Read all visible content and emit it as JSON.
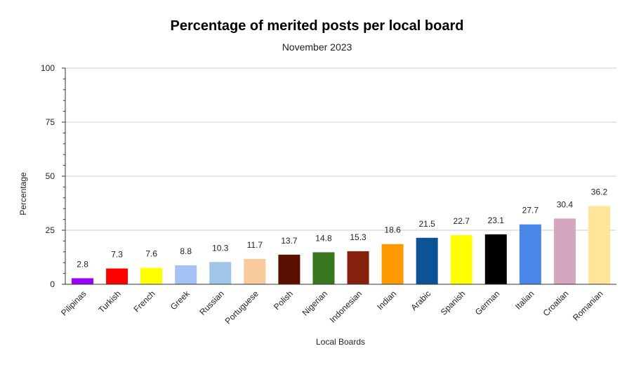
{
  "chart_data": {
    "type": "bar",
    "title": "Percentage of merited posts per local board",
    "subtitle": "November 2023",
    "xlabel": "Local Boards",
    "ylabel": "Percentage",
    "ylim": [
      0,
      100
    ],
    "yticks": [
      "0",
      "25",
      "50",
      "75",
      "100"
    ],
    "grid": true,
    "legend": "none",
    "categories": [
      "Pilipinas",
      "Turkish",
      "French",
      "Greek",
      "Russian",
      "Portuguese",
      "Polish",
      "Nigerian",
      "Indonesian",
      "Indian",
      "Arabic",
      "Spanish",
      "German",
      "Italian",
      "Croatian",
      "Romanian"
    ],
    "values": [
      2.8,
      7.3,
      7.6,
      8.8,
      10.3,
      11.7,
      13.7,
      14.8,
      15.3,
      18.6,
      21.5,
      22.7,
      23.1,
      27.7,
      30.4,
      36.2
    ],
    "value_labels": [
      "2.8",
      "7.3",
      "7.6",
      "8.8",
      "10.3",
      "11.7",
      "13.7",
      "14.8",
      "15.3",
      "18.6",
      "21.5",
      "22.7",
      "23.1",
      "27.7",
      "30.4",
      "36.2"
    ],
    "colors": [
      "#9900ff",
      "#ff0000",
      "#ffff00",
      "#a4c2f4",
      "#9fc5e8",
      "#f9cb9c",
      "#5b0f00",
      "#38761d",
      "#85200c",
      "#ff9900",
      "#0b5394",
      "#ffff00",
      "#000000",
      "#4a86e8",
      "#d5a6bd",
      "#ffe599"
    ]
  }
}
